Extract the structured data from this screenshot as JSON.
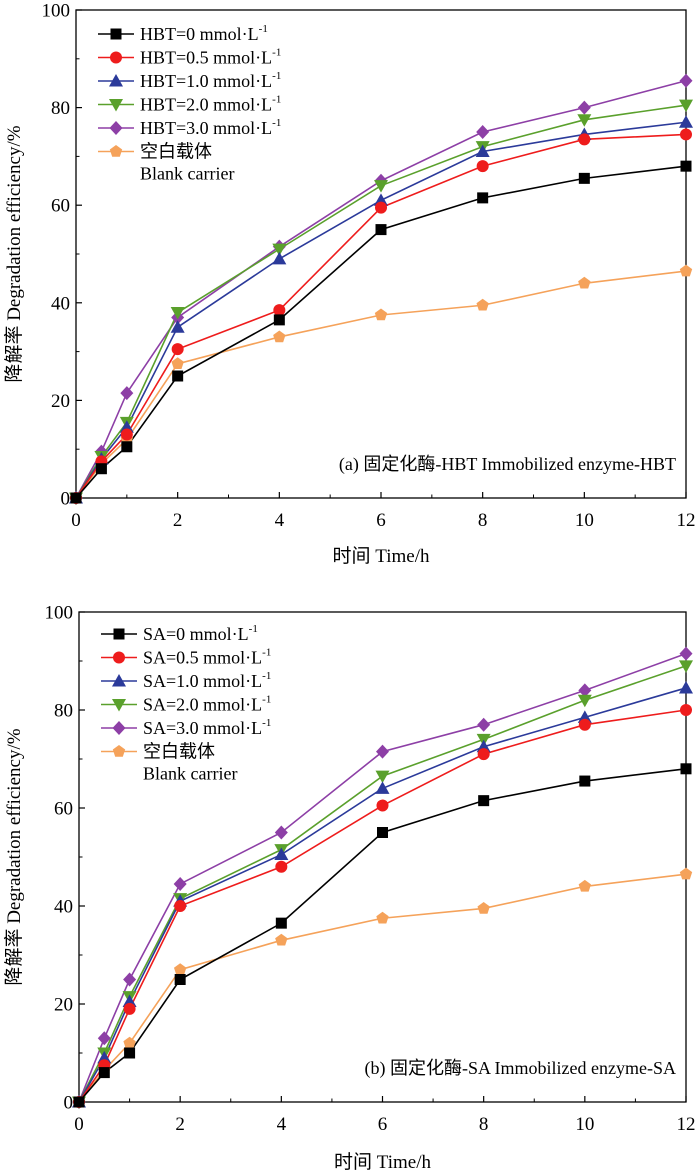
{
  "chart_data": [
    {
      "type": "line",
      "annotation": "(a) 固定化酶-HBT Immobilized enzyme-HBT",
      "xlabel": "时间 Time/h",
      "ylabel": "降解率 Degradation efficiency/%",
      "xlim": [
        0,
        12
      ],
      "ylim": [
        0,
        100
      ],
      "xticks": [
        0,
        2,
        4,
        6,
        8,
        10,
        12
      ],
      "yticks": [
        0,
        20,
        40,
        60,
        80,
        100
      ],
      "x": [
        0,
        0.5,
        1,
        2,
        4,
        6,
        8,
        10,
        12
      ],
      "legend_position": "top-left",
      "grid": false,
      "series": [
        {
          "name": "HBT=0 mmol·L",
          "superscript": "-1",
          "marker": "square",
          "color": "#000000",
          "values": [
            0,
            6,
            10.5,
            25,
            36.5,
            55,
            61.5,
            65.5,
            68
          ]
        },
        {
          "name": "HBT=0.5 mmol·L",
          "superscript": "-1",
          "marker": "circle",
          "color": "#ee1c1c",
          "values": [
            0,
            7.5,
            13,
            30.5,
            38.5,
            59.5,
            68,
            73.5,
            74.5
          ]
        },
        {
          "name": "HBT=1.0 mmol·L",
          "superscript": "-1",
          "marker": "triangle-up",
          "color": "#2b3a9a",
          "values": [
            0,
            8,
            14.5,
            35,
            49,
            61,
            71,
            74.5,
            77
          ]
        },
        {
          "name": "HBT=2.0 mmol·L",
          "superscript": "-1",
          "marker": "triangle-down",
          "color": "#5aa02c",
          "values": [
            0,
            8.5,
            15.5,
            38,
            51,
            64,
            72,
            77.5,
            80.5
          ]
        },
        {
          "name": "HBT=3.0 mmol·L",
          "superscript": "-1",
          "marker": "diamond",
          "color": "#8d3fa6",
          "values": [
            0,
            9.5,
            21.5,
            37,
            51.5,
            65,
            75,
            80,
            85.5
          ]
        },
        {
          "name": "空白载体",
          "name2": "Blank carrier",
          "marker": "pentagon",
          "color": "#f5a25a",
          "values": [
            0,
            7,
            12,
            27.5,
            33,
            37.5,
            39.5,
            44,
            46.5
          ]
        }
      ]
    },
    {
      "type": "line",
      "annotation": "(b) 固定化酶-SA Immobilized enzyme-SA",
      "xlabel": "时间 Time/h",
      "ylabel": "降解率 Degradation efficiency/%",
      "xlim": [
        0,
        12
      ],
      "ylim": [
        0,
        100
      ],
      "xticks": [
        0,
        2,
        4,
        6,
        8,
        10,
        12
      ],
      "yticks": [
        0,
        20,
        40,
        60,
        80,
        100
      ],
      "x": [
        0,
        0.5,
        1,
        2,
        4,
        6,
        8,
        10,
        12
      ],
      "legend_position": "top-left",
      "grid": false,
      "series": [
        {
          "name": "SA=0 mmol·L",
          "superscript": "-1",
          "marker": "square",
          "color": "#000000",
          "values": [
            0,
            6,
            10,
            25,
            36.5,
            55,
            61.5,
            65.5,
            68
          ]
        },
        {
          "name": "SA=0.5 mmol·L",
          "superscript": "-1",
          "marker": "circle",
          "color": "#ee1c1c",
          "values": [
            0,
            7.5,
            19,
            40,
            48,
            60.5,
            71,
            77,
            80
          ]
        },
        {
          "name": "SA=1.0 mmol·L",
          "superscript": "-1",
          "marker": "triangle-up",
          "color": "#2b3a9a",
          "values": [
            0,
            9,
            20.5,
            41,
            50.5,
            64,
            72.5,
            78.5,
            84.5
          ]
        },
        {
          "name": "SA=2.0 mmol·L",
          "superscript": "-1",
          "marker": "triangle-down",
          "color": "#5aa02c",
          "values": [
            0,
            10,
            21.5,
            41.5,
            51.5,
            66.5,
            74,
            82,
            89
          ]
        },
        {
          "name": "SA=3.0 mmol·L",
          "superscript": "-1",
          "marker": "diamond",
          "color": "#8d3fa6",
          "values": [
            0,
            13,
            25,
            44.5,
            55,
            71.5,
            77,
            84,
            91.5
          ]
        },
        {
          "name": "空白载体",
          "name2": "Blank carrier",
          "marker": "pentagon",
          "color": "#f5a25a",
          "values": [
            0,
            6.5,
            12,
            27,
            33,
            37.5,
            39.5,
            44,
            46.5
          ]
        }
      ]
    }
  ]
}
